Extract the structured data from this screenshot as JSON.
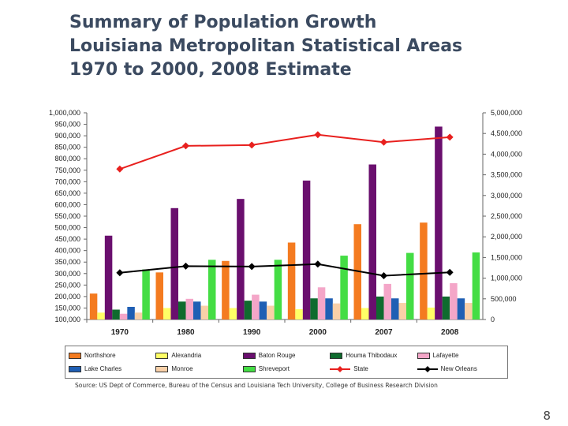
{
  "title_lines": [
    "Summary of Population Growth",
    "Louisiana Metropolitan Statistical Areas",
    "1970 to 2000, 2008 Estimate"
  ],
  "source": "Source: US Dept of Commerce, Bureau of the Census and Louisiana Tech University, College of Business Research Division",
  "page_number": "8",
  "chart_data": {
    "type": "bar",
    "categories": [
      "1970",
      "1980",
      "1990",
      "2000",
      "2007",
      "2008"
    ],
    "y_left": {
      "lim": [
        100000,
        1000000
      ],
      "ticks": [
        "100,000",
        "150,000",
        "200,000",
        "250,000",
        "300,000",
        "350,000",
        "400,000",
        "450,000",
        "500,000",
        "550,000",
        "600,000",
        "650,000",
        "700,000",
        "750,000",
        "800,000",
        "850,000",
        "900,000",
        "950,000",
        "1,000,000"
      ]
    },
    "y_right": {
      "lim": [
        0,
        5000000
      ],
      "ticks": [
        "0",
        "500,000",
        "1,000,000",
        "1,500,000",
        "2,000,000",
        "2,500,000",
        "3,000,000",
        "3,500,000",
        "4,000,000",
        "4,500,000",
        "5,000,000"
      ]
    },
    "bar_series": [
      {
        "name": "Northshore",
        "color": "#f47b20",
        "values": [
          213000,
          305000,
          355000,
          435000,
          515000,
          522000
        ]
      },
      {
        "name": "Alexandria",
        "color": "#ffff66",
        "values": [
          130000,
          150000,
          150000,
          145000,
          150000,
          152000
        ]
      },
      {
        "name": "Baton Rouge",
        "color": "#6a0f6e",
        "values": [
          465000,
          585000,
          625000,
          705000,
          775000,
          940000
        ]
      },
      {
        "name": "Houma Thibodaux",
        "color": "#0f6b2e",
        "values": [
          143000,
          178000,
          182000,
          192000,
          200000,
          200000
        ]
      },
      {
        "name": "Lafayette",
        "color": "#f4a6c8",
        "values": [
          125000,
          190000,
          208000,
          240000,
          255000,
          258000
        ]
      },
      {
        "name": "Lake Charles",
        "color": "#1f5fb4",
        "values": [
          155000,
          178000,
          178000,
          192000,
          192000,
          192000
        ]
      },
      {
        "name": "Monroe",
        "color": "#f9d0a8",
        "values": [
          130000,
          160000,
          160000,
          170000,
          172000,
          172000
        ]
      },
      {
        "name": "Shreveport",
        "color": "#44dd44",
        "values": [
          318000,
          360000,
          360000,
          378000,
          390000,
          392000
        ]
      }
    ],
    "line_series": [
      {
        "name": "State",
        "color": "#e8201e",
        "marker": "diamond",
        "values": [
          3640000,
          4200000,
          4220000,
          4470000,
          4290000,
          4410000
        ]
      },
      {
        "name": "New Orleans",
        "color": "#000000",
        "marker": "diamond",
        "values": [
          1130000,
          1290000,
          1280000,
          1340000,
          1060000,
          1140000
        ]
      }
    ],
    "legend_placement": "bottom",
    "grid": false
  }
}
